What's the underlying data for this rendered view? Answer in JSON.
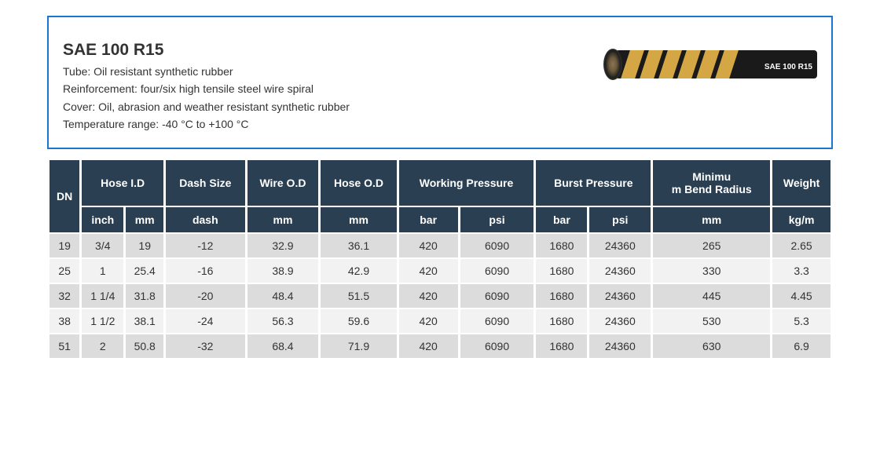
{
  "header": {
    "title": "SAE 100 R15",
    "tube": "Tube: Oil resistant synthetic rubber",
    "reinforcement": "Reinforcement: four/six high tensile steel wire spiral",
    "cover": "Cover: Oil, abrasion and weather resistant synthetic rubber",
    "temp": "Temperature range: -40 °C to +100 °C",
    "hose_label": "SAE 100 R15",
    "border_color": "#1976d2"
  },
  "table": {
    "header_bg": "#2a3f52",
    "header_color": "#ffffff",
    "row_odd_bg": "#dcdcdc",
    "row_even_bg": "#f2f2f2",
    "top_headers": {
      "dn": "DN",
      "hose_id": "Hose I.D",
      "dash_size": "Dash Size",
      "wire_od": "Wire O.D",
      "hose_od": "Hose O.D",
      "working": "Working Pressure",
      "burst": "Burst Pressure",
      "min_bend": "Minimu\nm Bend Radius",
      "weight": "Weight"
    },
    "unit_headers": {
      "inch": "inch",
      "mm": "mm",
      "dash": "dash",
      "mm2": "mm",
      "mm3": "mm",
      "bar": "bar",
      "psi": "psi",
      "bar2": "bar",
      "psi2": "psi",
      "mm4": "mm",
      "kgm": "kg/m"
    },
    "rows": [
      {
        "dn": "19",
        "inch": "3/4",
        "mm": "19",
        "dash": "-12",
        "wire": "32.9",
        "hose": "36.1",
        "wbar": "420",
        "wpsi": "6090",
        "bbar": "1680",
        "bpsi": "24360",
        "bend": "265",
        "weight": "2.65"
      },
      {
        "dn": "25",
        "inch": "1",
        "mm": "25.4",
        "dash": "-16",
        "wire": "38.9",
        "hose": "42.9",
        "wbar": "420",
        "wpsi": "6090",
        "bbar": "1680",
        "bpsi": "24360",
        "bend": "330",
        "weight": "3.3"
      },
      {
        "dn": "32",
        "inch": "1 1/4",
        "mm": "31.8",
        "dash": "-20",
        "wire": "48.4",
        "hose": "51.5",
        "wbar": "420",
        "wpsi": "6090",
        "bbar": "1680",
        "bpsi": "24360",
        "bend": "445",
        "weight": "4.45"
      },
      {
        "dn": "38",
        "inch": "1 1/2",
        "mm": "38.1",
        "dash": "-24",
        "wire": "56.3",
        "hose": "59.6",
        "wbar": "420",
        "wpsi": "6090",
        "bbar": "1680",
        "bpsi": "24360",
        "bend": "530",
        "weight": "5.3"
      },
      {
        "dn": "51",
        "inch": "2",
        "mm": "50.8",
        "dash": "-32",
        "wire": "68.4",
        "hose": "71.9",
        "wbar": "420",
        "wpsi": "6090",
        "bbar": "1680",
        "bpsi": "24360",
        "bend": "630",
        "weight": "6.9"
      }
    ]
  },
  "hose_visual": {
    "body_color": "#1a1a1a",
    "stripe_color": "#d4a744",
    "stripe_positions": [
      26,
      50,
      74,
      98,
      122,
      146
    ]
  }
}
